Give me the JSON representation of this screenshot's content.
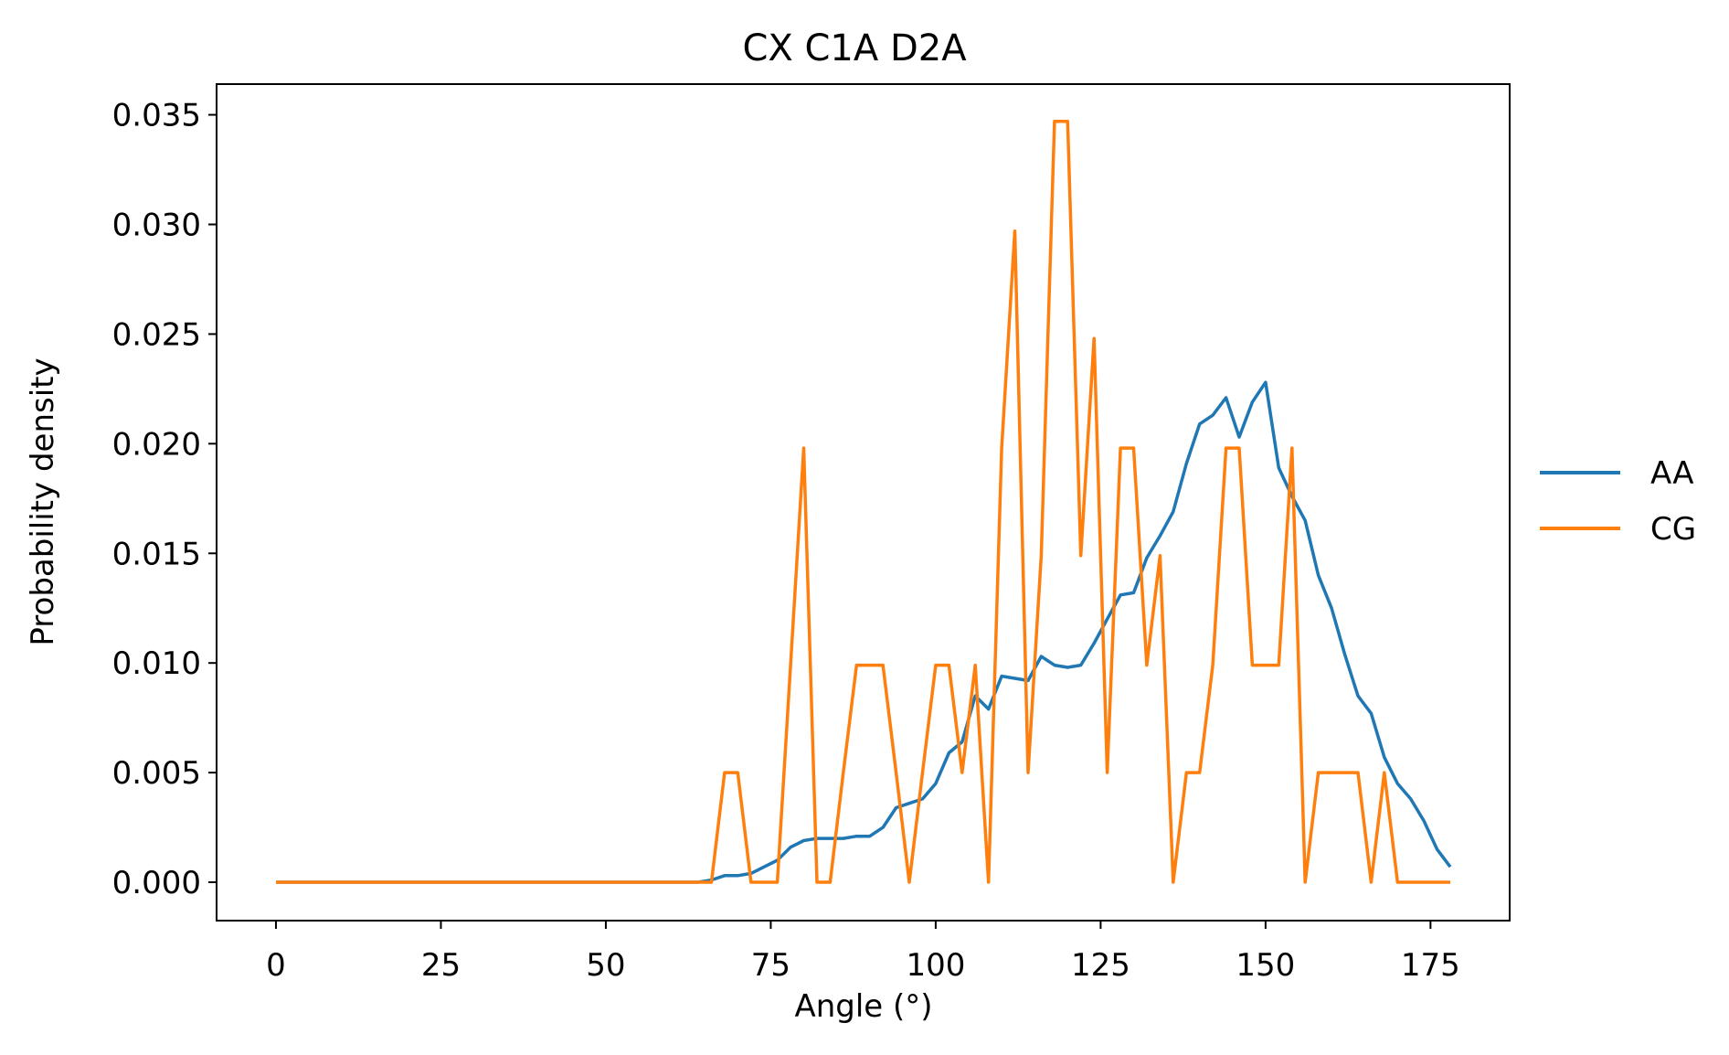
{
  "chart_data": {
    "type": "line",
    "title": "CX C1A D2A",
    "xlabel": "Angle (°)",
    "ylabel": "Probability density",
    "xlim": [
      -9,
      187
    ],
    "ylim": [
      -0.00175,
      0.0364
    ],
    "xticks": [
      0,
      25,
      50,
      75,
      100,
      125,
      150,
      175
    ],
    "yticks": [
      0.0,
      0.005,
      0.01,
      0.015,
      0.02,
      0.025,
      0.03,
      0.035
    ],
    "xtick_labels": [
      "0",
      "25",
      "50",
      "75",
      "100",
      "125",
      "150",
      "175"
    ],
    "ytick_labels": [
      "0.000",
      "0.005",
      "0.010",
      "0.015",
      "0.020",
      "0.025",
      "0.030",
      "0.035"
    ],
    "grid": false,
    "legend_position": "outside-right",
    "series": [
      {
        "name": "AA",
        "color": "#1f77b4",
        "x": [
          0,
          2,
          4,
          6,
          8,
          10,
          12,
          14,
          16,
          18,
          20,
          22,
          24,
          26,
          28,
          30,
          32,
          34,
          36,
          38,
          40,
          42,
          44,
          46,
          48,
          50,
          52,
          54,
          56,
          58,
          60,
          62,
          64,
          66,
          68,
          70,
          72,
          74,
          76,
          78,
          80,
          82,
          84,
          86,
          88,
          90,
          92,
          94,
          96,
          98,
          100,
          102,
          104,
          106,
          108,
          110,
          112,
          114,
          116,
          118,
          120,
          122,
          124,
          126,
          128,
          130,
          132,
          134,
          136,
          138,
          140,
          142,
          144,
          146,
          148,
          150,
          152,
          154,
          156,
          158,
          160,
          162,
          164,
          166,
          168,
          170,
          172,
          174,
          176,
          178
        ],
        "y": [
          0,
          0,
          0,
          0,
          0,
          0,
          0,
          0,
          0,
          0,
          0,
          0,
          0,
          0,
          0,
          0,
          0,
          0,
          0,
          0,
          0,
          0,
          0,
          0,
          0,
          0,
          0,
          0,
          0,
          0,
          0,
          0,
          0,
          0.0001,
          0.0003,
          0.0003,
          0.0004,
          0.0007,
          0.001,
          0.0016,
          0.0019,
          0.002,
          0.002,
          0.002,
          0.0021,
          0.0021,
          0.0025,
          0.0034,
          0.0036,
          0.0038,
          0.0045,
          0.0059,
          0.0064,
          0.0085,
          0.0079,
          0.0094,
          0.0093,
          0.0092,
          0.0103,
          0.0099,
          0.0098,
          0.0099,
          0.0109,
          0.012,
          0.0131,
          0.0132,
          0.0148,
          0.0158,
          0.0169,
          0.0191,
          0.0209,
          0.0213,
          0.0221,
          0.0203,
          0.0219,
          0.0228,
          0.0189,
          0.0176,
          0.0165,
          0.014,
          0.0125,
          0.0104,
          0.0085,
          0.0077,
          0.0057,
          0.0045,
          0.0038,
          0.0028,
          0.0015,
          0.0007
        ]
      },
      {
        "name": "CG",
        "color": "#ff7f0e",
        "x": [
          0,
          2,
          4,
          6,
          8,
          10,
          12,
          14,
          16,
          18,
          20,
          22,
          24,
          26,
          28,
          30,
          32,
          34,
          36,
          38,
          40,
          42,
          44,
          46,
          48,
          50,
          52,
          54,
          56,
          58,
          60,
          62,
          64,
          66,
          68,
          70,
          72,
          74,
          76,
          78,
          80,
          82,
          84,
          86,
          88,
          90,
          92,
          94,
          96,
          98,
          100,
          102,
          104,
          106,
          108,
          110,
          112,
          114,
          116,
          118,
          120,
          122,
          124,
          126,
          128,
          130,
          132,
          134,
          136,
          138,
          140,
          142,
          144,
          146,
          148,
          150,
          152,
          154,
          156,
          158,
          160,
          162,
          164,
          166,
          168,
          170,
          172,
          174,
          176,
          178
        ],
        "y": [
          0,
          0,
          0,
          0,
          0,
          0,
          0,
          0,
          0,
          0,
          0,
          0,
          0,
          0,
          0,
          0,
          0,
          0,
          0,
          0,
          0,
          0,
          0,
          0,
          0,
          0,
          0,
          0,
          0,
          0,
          0,
          0,
          0,
          0,
          0.005,
          0.005,
          0,
          0,
          0,
          0.0099,
          0.0198,
          0,
          0,
          0.005,
          0.0099,
          0.0099,
          0.0099,
          0.005,
          0,
          0.005,
          0.0099,
          0.0099,
          0.005,
          0.0099,
          0,
          0.0198,
          0.0297,
          0.005,
          0.0149,
          0.0347,
          0.0347,
          0.0149,
          0.0248,
          0.005,
          0.0198,
          0.0198,
          0.0099,
          0.0149,
          0,
          0.005,
          0.005,
          0.0099,
          0.0198,
          0.0198,
          0.0099,
          0.0099,
          0.0099,
          0.0198,
          0,
          0.005,
          0.005,
          0.005,
          0.005,
          0,
          0.005,
          0,
          0,
          0,
          0,
          0
        ]
      }
    ]
  }
}
